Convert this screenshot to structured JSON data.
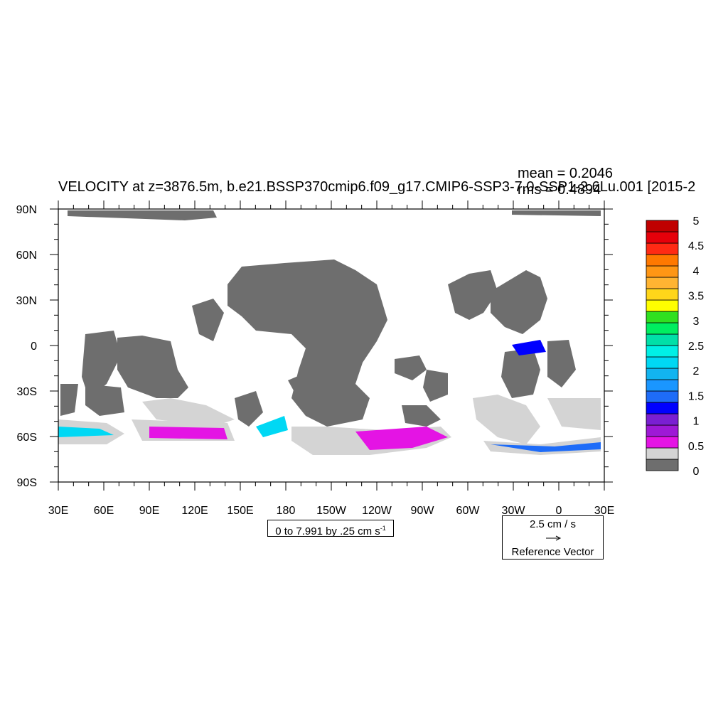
{
  "title": "VELOCITY at z=3876.5m, b.e21.BSSP370cmip6.f09_g17.CMIP6-SSP3-7.0-SSP1-2.6Lu.001 [2015-2",
  "stats": {
    "mean": "mean = 0.2046",
    "rms": "rms = 0.4894"
  },
  "contour_info": {
    "text": "0 to 7.991 by .25 cm s",
    "superscript": "-1"
  },
  "reference_vector": {
    "speed": "2.5 cm / s",
    "label": "Reference Vector"
  },
  "chart_data": {
    "type": "heatmap",
    "title": "VELOCITY at z=3876.5m, b.e21.BSSP370cmip6.f09_g17.CMIP6-SSP3-7.0-SSP1-2.6Lu.001 [2015-2",
    "variable_units": "cm s-1",
    "x_tick_labels": [
      "30E",
      "60E",
      "90E",
      "120E",
      "150E",
      "180",
      "150W",
      "120W",
      "90W",
      "60W",
      "30W",
      "0",
      "30E"
    ],
    "x_tick_values": [
      30,
      60,
      90,
      120,
      150,
      180,
      210,
      240,
      270,
      300,
      330,
      360,
      390
    ],
    "y_tick_labels": [
      "90N",
      "60N",
      "30N",
      "0",
      "30S",
      "60S",
      "90S"
    ],
    "y_tick_values": [
      90,
      60,
      30,
      0,
      -30,
      -60,
      -90
    ],
    "xlim": [
      30,
      390
    ],
    "ylim": [
      -90,
      90
    ],
    "colorbar": {
      "labels": [
        "5",
        "4.5",
        "4",
        "3.5",
        "3",
        "2.5",
        "2",
        "1.5",
        "1",
        "0.5",
        "0"
      ],
      "levels": [
        0,
        0.25,
        0.5,
        0.75,
        1,
        1.25,
        1.5,
        1.75,
        2,
        2.25,
        2.5,
        2.75,
        3,
        3.25,
        3.5,
        3.75,
        4,
        4.25,
        4.5,
        4.75,
        5
      ],
      "colors": [
        "#6e6e6e",
        "#d4d4d4",
        "#e414e4",
        "#9e19d6",
        "#7a1fd2",
        "#0000ff",
        "#1e6cf8",
        "#1a96ff",
        "#12b4f0",
        "#00d8f4",
        "#00f0e6",
        "#00e0a8",
        "#00ee60",
        "#30e020",
        "#ffff00",
        "#ffd61a",
        "#ffb432",
        "#ff9614",
        "#ff7800",
        "#ff2a14",
        "#e6000a",
        "#c00000"
      ]
    },
    "stats": {
      "mean": 0.2046,
      "rms": 0.4894
    },
    "contour_range": [
      0,
      7.991
    ],
    "contour_interval": 0.25,
    "reference_vector_magnitude": 2.5,
    "grid": false
  }
}
